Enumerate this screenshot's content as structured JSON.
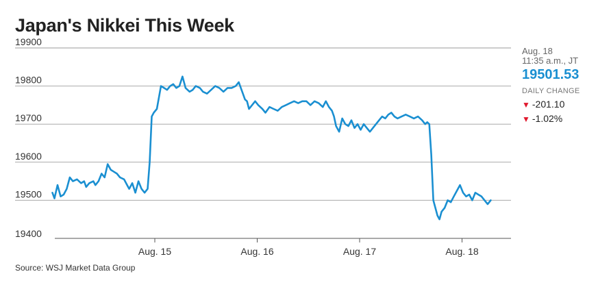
{
  "title": "Japan's Nikkei This Week",
  "source": "Source: WSJ Market Data Group",
  "quote": {
    "date": "Aug. 18",
    "time": "11:35 a.m., JT",
    "price": "19501.53",
    "daily_change_label": "DAILY CHANGE",
    "change_points": "-201.10",
    "change_percent": "-1.02%"
  },
  "colors": {
    "line": "#1a8fd1",
    "price": "#1a8fd1",
    "down": "#e0182d"
  },
  "chart_data": {
    "type": "line",
    "title": "Japan's Nikkei This Week",
    "xlabel": "",
    "ylabel": "",
    "ylim": [
      19400,
      19900
    ],
    "yticks": [
      19400,
      19500,
      19600,
      19700,
      19800,
      19900
    ],
    "grid": "horizontal",
    "xtick_labels": [
      {
        "label": "Aug. 15",
        "x": 1.0
      },
      {
        "label": "Aug. 16",
        "x": 2.0
      },
      {
        "label": "Aug. 17",
        "x": 3.0
      },
      {
        "label": "Aug. 18",
        "x": 4.0
      }
    ],
    "xlim": [
      0,
      4.5
    ],
    "series": [
      {
        "values": [
          [
            0.0,
            19520
          ],
          [
            0.02,
            19505
          ],
          [
            0.05,
            19540
          ],
          [
            0.08,
            19510
          ],
          [
            0.11,
            19515
          ],
          [
            0.14,
            19530
          ],
          [
            0.17,
            19560
          ],
          [
            0.2,
            19550
          ],
          [
            0.24,
            19555
          ],
          [
            0.28,
            19545
          ],
          [
            0.31,
            19550
          ],
          [
            0.33,
            19535
          ],
          [
            0.36,
            19545
          ],
          [
            0.4,
            19550
          ],
          [
            0.42,
            19540
          ],
          [
            0.45,
            19550
          ],
          [
            0.48,
            19570
          ],
          [
            0.51,
            19560
          ],
          [
            0.54,
            19595
          ],
          [
            0.57,
            19580
          ],
          [
            0.6,
            19575
          ],
          [
            0.63,
            19570
          ],
          [
            0.66,
            19560
          ],
          [
            0.7,
            19555
          ],
          [
            0.73,
            19540
          ],
          [
            0.75,
            19530
          ],
          [
            0.78,
            19545
          ],
          [
            0.81,
            19520
          ],
          [
            0.84,
            19550
          ],
          [
            0.87,
            19530
          ],
          [
            0.9,
            19520
          ],
          [
            0.93,
            19530
          ],
          [
            0.95,
            19600
          ],
          [
            0.97,
            19720
          ],
          [
            0.99,
            19730
          ],
          [
            1.02,
            19740
          ],
          [
            1.04,
            19770
          ],
          [
            1.06,
            19800
          ],
          [
            1.09,
            19795
          ],
          [
            1.12,
            19790
          ],
          [
            1.15,
            19800
          ],
          [
            1.18,
            19805
          ],
          [
            1.21,
            19795
          ],
          [
            1.24,
            19800
          ],
          [
            1.27,
            19825
          ],
          [
            1.3,
            19795
          ],
          [
            1.34,
            19785
          ],
          [
            1.37,
            19790
          ],
          [
            1.4,
            19800
          ],
          [
            1.44,
            19795
          ],
          [
            1.47,
            19785
          ],
          [
            1.51,
            19780
          ],
          [
            1.55,
            19790
          ],
          [
            1.59,
            19800
          ],
          [
            1.63,
            19795
          ],
          [
            1.67,
            19785
          ],
          [
            1.71,
            19795
          ],
          [
            1.75,
            19795
          ],
          [
            1.79,
            19800
          ],
          [
            1.82,
            19810
          ],
          [
            1.84,
            19795
          ],
          [
            1.86,
            19780
          ],
          [
            1.88,
            19765
          ],
          [
            1.9,
            19760
          ],
          [
            1.92,
            19740
          ],
          [
            1.95,
            19750
          ],
          [
            1.98,
            19760
          ],
          [
            2.01,
            19750
          ],
          [
            2.05,
            19740
          ],
          [
            2.08,
            19730
          ],
          [
            2.12,
            19745
          ],
          [
            2.16,
            19740
          ],
          [
            2.2,
            19735
          ],
          [
            2.24,
            19745
          ],
          [
            2.28,
            19750
          ],
          [
            2.32,
            19755
          ],
          [
            2.36,
            19760
          ],
          [
            2.4,
            19755
          ],
          [
            2.44,
            19760
          ],
          [
            2.48,
            19760
          ],
          [
            2.52,
            19750
          ],
          [
            2.56,
            19760
          ],
          [
            2.6,
            19755
          ],
          [
            2.64,
            19745
          ],
          [
            2.67,
            19760
          ],
          [
            2.7,
            19745
          ],
          [
            2.73,
            19735
          ],
          [
            2.75,
            19720
          ],
          [
            2.77,
            19695
          ],
          [
            2.8,
            19680
          ],
          [
            2.83,
            19715
          ],
          [
            2.86,
            19700
          ],
          [
            2.89,
            19695
          ],
          [
            2.92,
            19710
          ],
          [
            2.95,
            19690
          ],
          [
            2.98,
            19700
          ],
          [
            3.01,
            19685
          ],
          [
            3.04,
            19700
          ],
          [
            3.07,
            19690
          ],
          [
            3.1,
            19680
          ],
          [
            3.13,
            19690
          ],
          [
            3.16,
            19700
          ],
          [
            3.19,
            19710
          ],
          [
            3.22,
            19720
          ],
          [
            3.25,
            19715
          ],
          [
            3.28,
            19725
          ],
          [
            3.31,
            19730
          ],
          [
            3.34,
            19720
          ],
          [
            3.37,
            19715
          ],
          [
            3.41,
            19720
          ],
          [
            3.45,
            19725
          ],
          [
            3.49,
            19720
          ],
          [
            3.53,
            19715
          ],
          [
            3.57,
            19720
          ],
          [
            3.61,
            19710
          ],
          [
            3.64,
            19700
          ],
          [
            3.66,
            19705
          ],
          [
            3.68,
            19700
          ],
          [
            3.7,
            19620
          ],
          [
            3.72,
            19500
          ],
          [
            3.74,
            19480
          ],
          [
            3.76,
            19460
          ],
          [
            3.78,
            19450
          ],
          [
            3.8,
            19470
          ],
          [
            3.83,
            19480
          ],
          [
            3.86,
            19500
          ],
          [
            3.89,
            19495
          ],
          [
            3.92,
            19510
          ],
          [
            3.95,
            19525
          ],
          [
            3.98,
            19540
          ],
          [
            4.01,
            19520
          ],
          [
            4.04,
            19510
          ],
          [
            4.07,
            19515
          ],
          [
            4.1,
            19500
          ],
          [
            4.13,
            19520
          ],
          [
            4.16,
            19515
          ],
          [
            4.19,
            19510
          ],
          [
            4.22,
            19500
          ],
          [
            4.25,
            19490
          ],
          [
            4.28,
            19500
          ]
        ]
      }
    ]
  }
}
